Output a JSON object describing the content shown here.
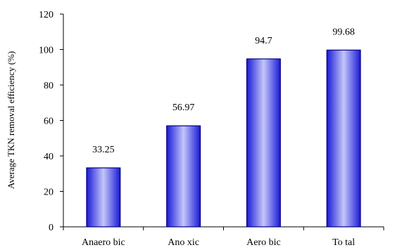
{
  "chart_data": {
    "type": "bar",
    "categories": [
      "Anaerobic",
      "Anoxic",
      "Aerobic",
      "Total"
    ],
    "category_labels": [
      "Anaero bic",
      "Ano xic",
      "Aero bic",
      "To tal"
    ],
    "values": [
      33.25,
      56.97,
      94.7,
      99.68
    ],
    "data_labels": [
      "33.25",
      "56.97",
      "94.7",
      "99.68"
    ],
    "title": "",
    "xlabel": "",
    "ylabel": "Average TKN removal efficiency (%)",
    "ylim": [
      0,
      120
    ],
    "yticks": [
      0,
      20,
      40,
      60,
      80,
      100,
      120
    ],
    "grid": false,
    "legend": "none",
    "colors": {
      "bar_edge": "#000080",
      "bar_dark": "#1a1ad6",
      "bar_light": "#c4c6fa",
      "axis": "#000000"
    }
  }
}
